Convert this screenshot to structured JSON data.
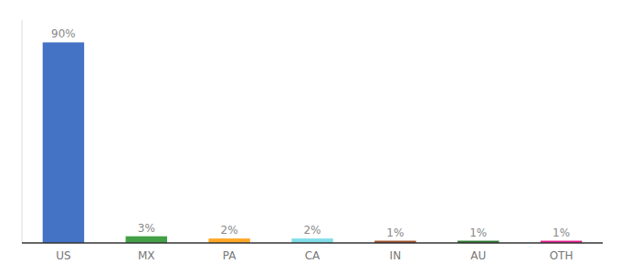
{
  "chart_data": {
    "type": "bar",
    "categories": [
      "US",
      "MX",
      "PA",
      "CA",
      "IN",
      "AU",
      "OTH"
    ],
    "values": [
      90,
      3,
      2,
      2,
      1,
      1,
      1
    ],
    "value_labels": [
      "90%",
      "3%",
      "2%",
      "2%",
      "1%",
      "1%",
      "1%"
    ],
    "colors": [
      "#4472C4",
      "#43A047",
      "#FFA726",
      "#80DEEA",
      "#A0522D",
      "#2E7D32",
      "#E91E8C"
    ],
    "ylim": [
      0,
      100
    ],
    "data_labels": true,
    "tick_labels": "x",
    "grid": false
  }
}
